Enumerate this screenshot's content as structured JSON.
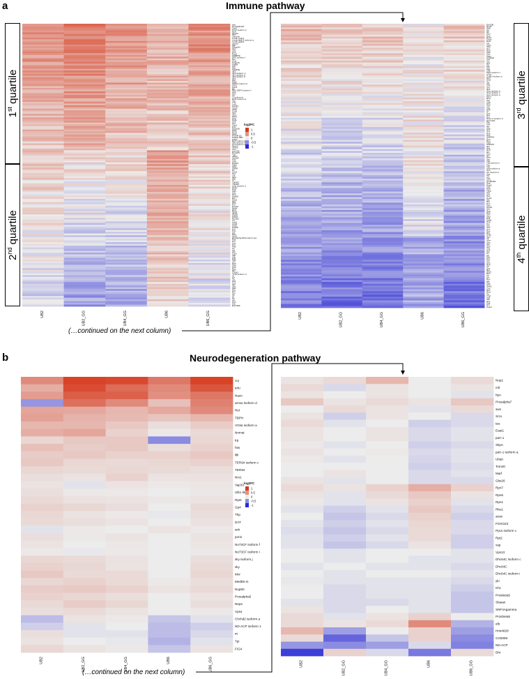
{
  "figure": {
    "panel_a": {
      "letter": "a",
      "title": "Immune pathway",
      "continued": "(…continued on the next column)"
    },
    "panel_b": {
      "letter": "b",
      "title": "Neurodegeneration pathway",
      "continued": "(…continued on the next column)"
    },
    "quartiles": [
      {
        "num": "1",
        "sup": "st",
        "word": " quartile"
      },
      {
        "num": "2",
        "sup": "nd",
        "word": " quartile"
      },
      {
        "num": "3",
        "sup": "rd",
        "word": " quartile"
      },
      {
        "num": "4",
        "sup": "th",
        "word": " quartile"
      }
    ]
  },
  "colors": {
    "up": "#d73a1e",
    "down": "#2a2ad6",
    "neutral": "#ececec"
  },
  "chart_data": [
    {
      "type": "heatmap",
      "panel": "a-left",
      "columns": [
        "UB2",
        "UB2_GG",
        "UB4_GG",
        "UB6",
        "UB6_GG"
      ],
      "legend": {
        "title": "log2FC",
        "ticks": [
          "1",
          "0.5",
          "0",
          "-0.5",
          "-1"
        ]
      },
      "rows": [
        "tefu",
        "Prosalpha6T",
        "Tsp5",
        "Pcs2 isoform a",
        "Hph",
        "Npc2a",
        "Sp7",
        "Lambrin",
        "Lectin-galC1",
        "Lectin-galC1 isoform a",
        "Lectin-galC1",
        "cactus",
        "Mtk",
        "Mkrgolin",
        "Ubx",
        "Cfly",
        "Cnk",
        "Rac2",
        "FKBP59",
        "DR1 isoform f",
        "Nsl",
        "Smk",
        "Snap25",
        "Atg8a",
        "Srp",
        "Nlzr",
        "Stat92E",
        "dlr3",
        "dlr3 isoform m",
        "dlr3 isoform p",
        "dlr3 isoform d",
        "dlr3",
        "Nlzr",
        "Mtdh",
        "Mtdh1 isoform b",
        "Ubr3",
        "Cas1",
        "Ric",
        "Rho-GEF3 isoform f",
        "pliro",
        "Ae1",
        "Tlr",
        "Tl isoform b",
        "Df31 isoform a",
        "Tsp",
        "Tnk",
        "Lcs1",
        "Cdc42",
        "Clock",
        "Aktip",
        "Ccp1",
        "Vps",
        "Glcn",
        "Ska1",
        "Nop",
        "Pelle",
        "Snk",
        "Oxt",
        "Twz2",
        "Pvk",
        "Dhc93A",
        "PHS",
        "RGN",
        "Mink",
        "PGRP-LE",
        "PGRP-SB1",
        "grass",
        "Egfr isoform d",
        "Spc isoform f1",
        "Ucp isoform a",
        "Tim17",
        "Tim16",
        "Tom",
        "pmt-f40",
        "Hsp18C",
        "Tpx",
        "gkNC",
        "mGluR",
        "Tret",
        "Galt",
        "Hsp20",
        "Fkbp",
        "Stbs",
        "SNAP",
        "Hc",
        "Ubc4",
        "Sec",
        "Lar",
        "Iap1",
        "Mkr",
        "Tl",
        "TNFR2",
        "TNFR2",
        "prob isoform b",
        "Cebp",
        "Rab",
        "Oa1",
        "Sdc",
        "Hsp",
        "Hsp20",
        "Eip",
        "Sec5",
        "Sac",
        "Hsp",
        "Pvr",
        "Hsp70",
        "Rpb4",
        "Rpb",
        "Rpb9",
        "ATF2",
        "FRAP",
        "PDFR",
        "Nmda1",
        "Trf",
        "Ank2",
        "Ank3",
        "Ank2",
        "PGRP",
        "Hsr",
        "Pxn",
        "gf1",
        "Ndp",
        "Sec3",
        "EF1alpha-86A isoform aa",
        "Pak",
        "Hsr",
        "Ace",
        "Pxn",
        "Pak",
        "Ac",
        "dor",
        "Grp",
        "Cam",
        "Vap",
        "Atg",
        "Pvk",
        "Tpk",
        "CG",
        "Rab",
        "Uba",
        "Cdc",
        "Rps",
        "Rpl",
        "Cdc42",
        "YLID isoform d",
        "Ar",
        "Arf",
        "Tg",
        "Pak",
        "Cnx",
        "Spl",
        "Ubc",
        "Stlk",
        "Ppt",
        "Pel",
        "Sm",
        "Tk",
        "Nt",
        "Tor",
        "Atx",
        "Pcd",
        "Ark",
        "Eip74EF"
      ],
      "values_source": "per-row log2FC values encoded as a reproducible pseudo-random matrix in the render script (not printed on the figure)"
    },
    {
      "type": "heatmap",
      "panel": "a-right",
      "columns": [
        "UB2",
        "UB2_GG",
        "UB4_GG",
        "UB6",
        "UB6_GG"
      ],
      "rows": [
        "Eip75B",
        "Nedd",
        "NijA",
        "Ntl",
        "Ntl",
        "Spn",
        "Ecd",
        "Ecd1",
        "Ocho",
        "EcR",
        "Lin",
        "Galc",
        "Stat",
        "Sec",
        "Hsp",
        "Oa1",
        "Sdc",
        "Mgst",
        "Cyp6a8",
        "Ubr",
        "Ulp",
        "Sox",
        "Sh",
        "Mkr",
        "Mgt",
        "Cdk",
        "Mgst isoform c",
        "Ccap",
        "Ccap1 isoform a",
        "Spn",
        "Smk",
        "Tor",
        "Ulp",
        "Cdc",
        "Sec",
        "Sex",
        "Sect isoform a",
        "Sect isoform c",
        "Sect isoform a",
        "Mcm",
        "Rop",
        "Tsp",
        "Cda",
        "Ubs",
        "Vps",
        "Atg",
        "Cap",
        "Dr",
        "Sox",
        "Sox",
        "Dcr",
        "Dicer-2 isoform b",
        "Eip71CD",
        "Plin",
        "Vps",
        "Stv",
        "Ubc",
        "Ubs",
        "Sox",
        "Hsp",
        "Sox",
        "SHPRH",
        "Dox",
        "Dox",
        "Gdh",
        "SHPRH",
        "Nlp",
        "Nrg",
        "Ncd",
        "Nlz",
        "Tom",
        "Tor",
        "Rab",
        "Taz",
        "Tbp",
        "Tbp isoform k",
        "Tsp",
        "Tpx",
        "Uba isoform a",
        "Tom",
        "Tor isoform b",
        "Vps",
        "Tsf",
        "Tsp",
        "CG1",
        "CG18494",
        "Rab",
        "Rab2",
        "Yup",
        "Rab",
        "Fkbp",
        "Xrp",
        "Ubr",
        "Sec",
        "Smt3",
        "Akr",
        "Rpt",
        "Dox",
        "Ubx",
        "UbqN",
        "Ubr",
        "Rap",
        "Ras",
        "Ubc",
        "Gbp",
        "Pvk",
        "GalN",
        "Hsp",
        "Pvr",
        "Ubr",
        "Ubs",
        "Sox",
        "Dox",
        "Drg",
        "Smg",
        "Spn",
        "Tk",
        "Uba",
        "Ubc",
        "Ubr",
        "Ufm",
        "Atg",
        "Ank",
        "Ary",
        "Pv",
        "Cg",
        "Ppt",
        "Pxn",
        "Spt",
        "Ubc",
        "Hsp",
        "Ntl",
        "Sox",
        "Rpt",
        "Dicer",
        "Rps",
        "Tk",
        "Sh",
        "Dox",
        "Akr",
        "Pas",
        "Ube",
        "Ube2",
        "Cdc",
        "Dox",
        "Dhd",
        "Tor",
        "Tmp",
        "Vps",
        "Stk",
        "Sox",
        "Pdk",
        "Dcr",
        "Pelp1"
      ],
      "values_source": "per-row log2FC values encoded as a reproducible pseudo-random matrix in the render script (not printed on the figure)"
    },
    {
      "type": "heatmap",
      "panel": "b-left",
      "columns": [
        "UB2",
        "UB2_GG",
        "UB4_GG",
        "UB6",
        "UB6_GG"
      ],
      "legend": {
        "title": "log2FC",
        "ticks": [
          "1",
          "0.5",
          "0",
          "-0.5",
          "-1"
        ]
      },
      "rows": [
        "cry",
        "tefu",
        "Nazo",
        "arrow isoform d",
        "Rel",
        "TBPH",
        "VGlut isoform a",
        "Nmnat",
        "trp",
        "htw",
        "lilli",
        "TER94 isoform c",
        "TER94",
        "Nrx1",
        "Vap33",
        "Ulk1-like",
        "Rpt4",
        "Gp4",
        "Thp",
        "DAT",
        "wrk",
        "porin",
        "No73CF isoform f",
        "No73CF isoform i",
        "sky isoform j",
        "sky",
        "Mnr",
        "Med55-m",
        "Nup50",
        "Prosalpha5",
        "Nep2",
        "Vps4",
        "Chchd2 isoform a",
        "ND-ACP isoform 1",
        "Pi",
        "Tpi",
        "FIG4"
      ],
      "values": [
        [
          0.55,
          0.95,
          0.92,
          0.65,
          0.95
        ],
        [
          0.35,
          0.9,
          0.72,
          0.55,
          0.85
        ],
        [
          0.45,
          0.8,
          0.78,
          0.52,
          0.65
        ],
        [
          -0.45,
          0.7,
          0.55,
          0.25,
          0.6
        ],
        [
          0.4,
          0.38,
          0.3,
          0.38,
          0.55
        ],
        [
          0.42,
          0.32,
          0.28,
          0.22,
          0.3
        ],
        [
          0.3,
          0.3,
          0.2,
          0.08,
          0.18
        ],
        [
          0.35,
          0.4,
          0.15,
          0.02,
          0.1
        ],
        [
          0.12,
          0.2,
          0.2,
          -0.5,
          0.12
        ],
        [
          0.25,
          0.18,
          0.2,
          0.08,
          0.15
        ],
        [
          0.18,
          0.2,
          0.15,
          0.15,
          0.2
        ],
        [
          0.2,
          0.12,
          0.1,
          0.12,
          0.15
        ],
        [
          0.12,
          0.1,
          0.12,
          0.1,
          0.08
        ],
        [
          0.08,
          0.05,
          0.15,
          0.05,
          0.06
        ],
        [
          0.05,
          -0.05,
          0.05,
          0.02,
          0.04
        ],
        [
          0.08,
          0.02,
          0.02,
          0.0,
          0.03
        ],
        [
          0.1,
          0.06,
          0.05,
          0.03,
          0.05
        ],
        [
          0.15,
          0.12,
          0.08,
          0.0,
          0.1
        ],
        [
          0.12,
          0.05,
          0.02,
          -0.02,
          0.08
        ],
        [
          0.1,
          0.08,
          0.05,
          0.0,
          0.06
        ],
        [
          -0.05,
          0.02,
          0.0,
          0.05,
          0.02
        ],
        [
          0.08,
          0.02,
          0.05,
          0.0,
          0.05
        ],
        [
          0.05,
          0.0,
          0.03,
          0.0,
          0.04
        ],
        [
          0.02,
          -0.02,
          0.02,
          0.0,
          0.02
        ],
        [
          0.12,
          0.1,
          0.06,
          0.0,
          0.08
        ],
        [
          0.15,
          0.12,
          0.05,
          0.0,
          0.1
        ],
        [
          0.2,
          0.1,
          0.1,
          0.0,
          0.12
        ],
        [
          0.12,
          0.15,
          0.1,
          0.02,
          0.08
        ],
        [
          0.18,
          0.2,
          0.15,
          0.05,
          0.1
        ],
        [
          0.15,
          0.12,
          0.08,
          0.0,
          0.05
        ],
        [
          0.1,
          0.18,
          0.12,
          0.0,
          0.08
        ],
        [
          0.08,
          0.1,
          0.05,
          0.0,
          0.02
        ],
        [
          -0.25,
          0.05,
          0.02,
          -0.2,
          -0.05
        ],
        [
          -0.15,
          -0.05,
          0.0,
          -0.25,
          -0.15
        ],
        [
          0.08,
          -0.05,
          -0.05,
          -0.25,
          -0.1
        ],
        [
          0.05,
          0.0,
          -0.02,
          -0.3,
          -0.05
        ],
        [
          0.12,
          0.05,
          0.02,
          -0.2,
          0.05
        ]
      ]
    },
    {
      "type": "heatmap",
      "panel": "b-right",
      "columns": [
        "UB2",
        "UB2_GG",
        "UB4_GG",
        "UB6",
        "UB6_GG"
      ],
      "rows": [
        "Nop1",
        "mlt",
        "hpo",
        "Prosalpha7",
        "sws",
        "Srcx",
        "tau",
        "Eaat1",
        "parr-1",
        "SkpA",
        "parr-1 isoform a",
        "Ubqn",
        "Tom40",
        "Marf",
        "Gbs26",
        "Rpn7",
        "Rpn5",
        "Rpn1",
        "Rbu1",
        "arew",
        "FOXO23",
        "Ppcs isoform c",
        "Rpt2",
        "vap",
        "Vps13",
        "Dhc64C isoform c",
        "Dhc64C",
        "Dhc64C isoform i",
        "yki",
        "Khc",
        "Prosbeta5",
        "Sbaaw",
        "SNF4Agamma",
        "Prosbeta5",
        "elb",
        "Hmt4828",
        "CG5059",
        "ND-ACP",
        "Dhr"
      ],
      "values": [
        [
          0.05,
          0.1,
          0.3,
          0.0,
          0.1
        ],
        [
          0.1,
          -0.1,
          0.05,
          0.0,
          0.05
        ],
        [
          0.05,
          0.0,
          0.05,
          0.0,
          -0.05
        ],
        [
          0.2,
          0.05,
          0.1,
          0.05,
          0.2
        ],
        [
          0.0,
          0.1,
          0.05,
          -0.05,
          0.1
        ],
        [
          0.05,
          -0.15,
          0.05,
          0.0,
          -0.1
        ],
        [
          0.1,
          -0.05,
          0.0,
          -0.15,
          -0.1
        ],
        [
          0.05,
          0.0,
          0.05,
          -0.1,
          -0.05
        ],
        [
          0.05,
          0.0,
          0.05,
          -0.1,
          -0.05
        ],
        [
          0.02,
          -0.05,
          0.0,
          -0.15,
          -0.1
        ],
        [
          0.05,
          0.0,
          0.02,
          -0.1,
          -0.05
        ],
        [
          0.02,
          -0.05,
          0.0,
          -0.12,
          -0.05
        ],
        [
          0.0,
          0.0,
          0.0,
          -0.15,
          -0.08
        ],
        [
          0.0,
          0.05,
          0.0,
          -0.1,
          -0.05
        ],
        [
          0.05,
          -0.05,
          0.0,
          -0.1,
          -0.1
        ],
        [
          0.1,
          0.05,
          0.15,
          0.35,
          0.15
        ],
        [
          0.05,
          -0.05,
          0.1,
          0.2,
          0.05
        ],
        [
          0.02,
          -0.05,
          0.05,
          0.15,
          -0.05
        ],
        [
          -0.05,
          -0.15,
          -0.05,
          0.2,
          -0.1
        ],
        [
          0.0,
          -0.2,
          -0.1,
          0.15,
          -0.15
        ],
        [
          -0.05,
          -0.15,
          -0.05,
          0.12,
          -0.1
        ],
        [
          -0.08,
          -0.2,
          -0.1,
          0.1,
          -0.1
        ],
        [
          -0.05,
          -0.15,
          -0.05,
          0.1,
          -0.15
        ],
        [
          -0.05,
          -0.2,
          -0.1,
          0.05,
          -0.15
        ],
        [
          0.0,
          -0.05,
          0.0,
          0.0,
          -0.05
        ],
        [
          0.0,
          -0.05,
          0.0,
          -0.05,
          -0.05
        ],
        [
          -0.05,
          0.0,
          -0.05,
          -0.05,
          -0.1
        ],
        [
          0.0,
          -0.05,
          0.0,
          0.0,
          -0.05
        ],
        [
          -0.02,
          -0.05,
          -0.05,
          -0.05,
          -0.1
        ],
        [
          0.0,
          -0.1,
          -0.05,
          -0.05,
          -0.15
        ],
        [
          0.0,
          -0.1,
          -0.05,
          -0.05,
          -0.2
        ],
        [
          -0.05,
          -0.1,
          -0.1,
          -0.05,
          -0.2
        ],
        [
          0.05,
          -0.1,
          0.0,
          -0.05,
          -0.2
        ],
        [
          0.1,
          -0.05,
          0.05,
          0.15,
          0.0
        ],
        [
          0.1,
          0.05,
          0.1,
          0.55,
          -0.3
        ],
        [
          0.3,
          -0.4,
          0.0,
          0.15,
          -0.4
        ],
        [
          0.1,
          -0.7,
          -0.2,
          0.15,
          -0.5
        ],
        [
          -0.45,
          -0.5,
          -0.4,
          -0.1,
          -0.55
        ],
        [
          -0.9,
          0.15,
          -0.1,
          -0.6,
          0.1
        ]
      ]
    }
  ]
}
